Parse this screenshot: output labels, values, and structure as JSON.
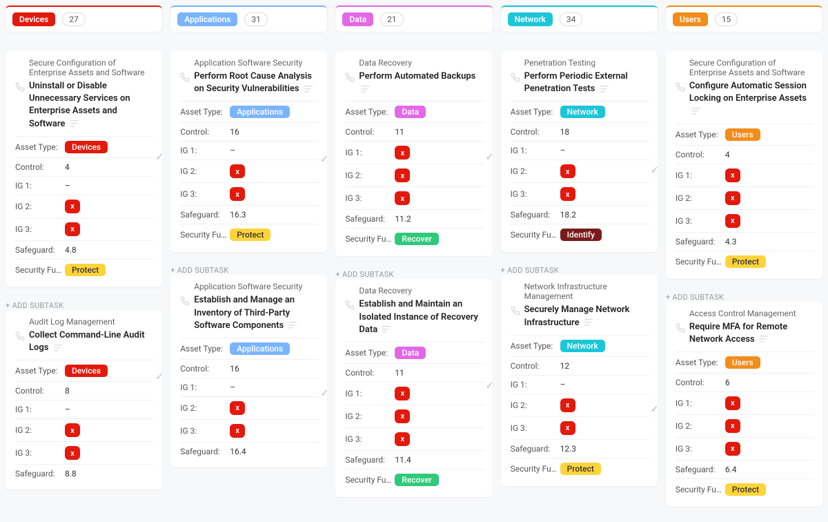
{
  "labels": {
    "asset_type": "Asset Type:",
    "control": "Control:",
    "ig1": "IG 1:",
    "ig2": "IG 2:",
    "ig3": "IG 3:",
    "safeguard": "Safeguard:",
    "security_fu": "Security Fu…",
    "add_subtask": "+ ADD SUBTASK",
    "dash": "–"
  },
  "palette": {
    "devices": "#e3190c",
    "applications": "#7ab4ff",
    "data": "#e268e8",
    "network": "#1cc6d9",
    "users": "#f28c1a",
    "protect": "#ffd43b",
    "recover": "#2fc97a",
    "identify": "#7a1a1a"
  },
  "columns": [
    {
      "name": "Devices",
      "accent": "#e3190c",
      "count": "27"
    },
    {
      "name": "Applications",
      "accent": "#7ab4ff",
      "count": "31"
    },
    {
      "name": "Data",
      "accent": "#e268e8",
      "count": "21"
    },
    {
      "name": "Network",
      "accent": "#1cc6d9",
      "count": "34"
    },
    {
      "name": "Users",
      "accent": "#f28c1a",
      "count": "15"
    }
  ],
  "cards": [
    [
      {
        "category": "Secure Configuration of Enterprise Assets and Software",
        "title": "Uninstall or Disable Unnecessary Services on Enterprise Assets and Software",
        "asset": "Devices",
        "asset_color": "#e3190c",
        "control": "4",
        "ig1": "–",
        "ig2": "x",
        "ig3": "x",
        "safeguard": "4.8",
        "func": "Protect",
        "func_color": "#ffd43b",
        "func_text": "#333",
        "add": true
      },
      {
        "category": "Audit Log Management",
        "title": "Collect Command-Line Audit Logs",
        "asset": "Devices",
        "asset_color": "#e3190c",
        "control": "8",
        "ig1": "–",
        "ig2": "x",
        "ig3": "x",
        "safeguard": "8.8"
      }
    ],
    [
      {
        "category": "Application Software Security",
        "title": "Perform Root Cause Analysis on Security Vulnerabilities",
        "asset": "Applications",
        "asset_color": "#7ab4ff",
        "control": "16",
        "ig1": "–",
        "ig2": "x",
        "ig3": "x",
        "safeguard": "16.3",
        "func": "Protect",
        "func_color": "#ffd43b",
        "func_text": "#333",
        "add": true
      },
      {
        "category": "Application Software Security",
        "title": "Establish and Manage an Inventory of Third-Party Software Components",
        "asset": "Applications",
        "asset_color": "#7ab4ff",
        "control": "16",
        "ig1": "–",
        "ig2": "x",
        "ig3": "x",
        "safeguard": "16.4"
      }
    ],
    [
      {
        "category": "Data Recovery",
        "title": "Perform Automated Backups",
        "asset": "Data",
        "asset_color": "#e268e8",
        "control": "11",
        "ig1": "x",
        "ig2": "x",
        "ig3": "x",
        "safeguard": "11.2",
        "func": "Recover",
        "func_color": "#2fc97a",
        "func_text": "#fff",
        "add": true
      },
      {
        "category": "Data Recovery",
        "title": "Establish and Maintain an Isolated Instance of Recovery Data",
        "asset": "Data",
        "asset_color": "#e268e8",
        "control": "11",
        "ig1": "x",
        "ig2": "x",
        "ig3": "x",
        "safeguard": "11.4",
        "func": "Recover",
        "func_color": "#2fc97a",
        "func_text": "#fff"
      }
    ],
    [
      {
        "category": "Penetration Testing",
        "title": "Perform Periodic External Penetration Tests",
        "asset": "Network",
        "asset_color": "#1cc6d9",
        "control": "18",
        "ig1": "–",
        "ig2": "x",
        "ig3": "x",
        "safeguard": "18.2",
        "func": "Identify",
        "func_color": "#7a1a1a",
        "func_text": "#fff",
        "add": true
      },
      {
        "category": "Network Infrastructure Management",
        "title": "Securely Manage Network Infrastructure",
        "asset": "Network",
        "asset_color": "#1cc6d9",
        "control": "12",
        "ig1": "–",
        "ig2": "x",
        "ig3": "x",
        "safeguard": "12.3",
        "func": "Protect",
        "func_color": "#ffd43b",
        "func_text": "#333"
      }
    ],
    [
      {
        "category": "Secure Configuration of Enterprise Assets and Software",
        "title": "Configure Automatic Session Locking on Enterprise Assets",
        "asset": "Users",
        "asset_color": "#f28c1a",
        "control": "4",
        "ig1": "x",
        "ig2": "x",
        "ig3": "x",
        "safeguard": "4.3",
        "func": "Protect",
        "func_color": "#ffd43b",
        "func_text": "#333",
        "add": true
      },
      {
        "category": "Access Control Management",
        "title": "Require MFA for Remote Network Access",
        "asset": "Users",
        "asset_color": "#f28c1a",
        "control": "6",
        "ig1": "x",
        "ig2": "x",
        "ig3": "x",
        "safeguard": "6.4",
        "func": "Protect",
        "func_color": "#ffd43b",
        "func_text": "#333"
      }
    ]
  ]
}
